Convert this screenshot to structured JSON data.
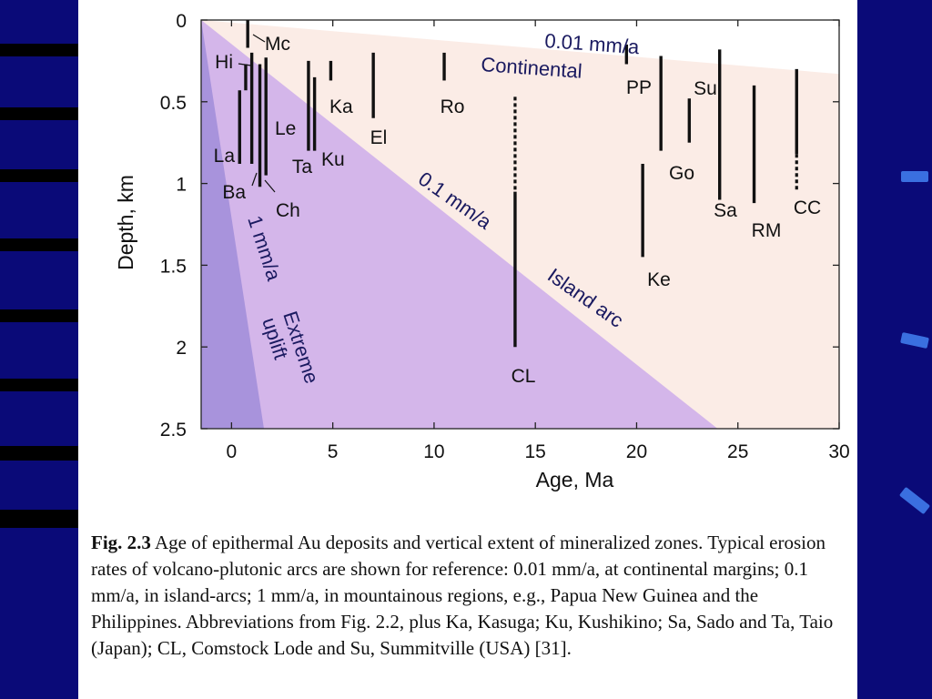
{
  "chart_data": {
    "type": "scatter",
    "xlabel": "Age, Ma",
    "ylabel": "Depth, km",
    "xlim": [
      -1.5,
      30
    ],
    "ylim": [
      0,
      2.5
    ],
    "x_ticks": [
      "0",
      "5",
      "10",
      "15",
      "20",
      "25",
      "30"
    ],
    "x_tick_values": [
      0,
      5,
      10,
      15,
      20,
      25,
      30
    ],
    "y_ticks": [
      "0",
      "0.5",
      "1",
      "1.5",
      "2",
      "2.5"
    ],
    "y_tick_values": [
      0,
      0.5,
      1,
      1.5,
      2,
      2.5
    ],
    "erosion_zones": [
      {
        "label": "0.01 mm/a",
        "sublabel": "Continental",
        "rate_mm_per_a": 0.01,
        "color": "#fbece6"
      },
      {
        "label": "0.1 mm/a",
        "sublabel": "Island arc",
        "rate_mm_per_a": 0.1,
        "color": "#d4b6ea"
      },
      {
        "label": "1 mm/a",
        "sublabel": "Extreme uplift",
        "rate_mm_per_a": 1,
        "color": "#a893dc"
      }
    ],
    "deposits": [
      {
        "name": "Mc",
        "age": 0.8,
        "depth_top": 0.0,
        "depth_bottom": 0.17
      },
      {
        "name": "Hi",
        "age": 0.7,
        "depth_top": 0.27,
        "depth_bottom": 0.43
      },
      {
        "name": "La",
        "age": 0.4,
        "depth_top": 0.43,
        "depth_bottom": 0.88
      },
      {
        "name": "Ba",
        "age": 1.0,
        "depth_top": 0.2,
        "depth_bottom": 0.88
      },
      {
        "name": "Ch",
        "age": 1.4,
        "depth_top": 0.27,
        "depth_bottom": 1.02
      },
      {
        "name": "Le",
        "age": 1.7,
        "depth_top": 0.23,
        "depth_bottom": 0.95
      },
      {
        "name": "Ta",
        "age": 3.8,
        "depth_top": 0.25,
        "depth_bottom": 0.8
      },
      {
        "name": "Ku",
        "age": 4.1,
        "depth_top": 0.35,
        "depth_bottom": 0.8
      },
      {
        "name": "Ka",
        "age": 4.9,
        "depth_top": 0.25,
        "depth_bottom": 0.37
      },
      {
        "name": "El",
        "age": 7.0,
        "depth_top": 0.2,
        "depth_bottom": 0.6
      },
      {
        "name": "Ro",
        "age": 10.5,
        "depth_top": 0.2,
        "depth_bottom": 0.37
      },
      {
        "name": "CL",
        "age": 14.0,
        "depth_top": 0.47,
        "depth_bottom": 2.0,
        "dashed_until": 1.05
      },
      {
        "name": "PP",
        "age": 19.5,
        "depth_top": 0.15,
        "depth_bottom": 0.27
      },
      {
        "name": "Ke",
        "age": 20.3,
        "depth_top": 0.88,
        "depth_bottom": 1.45
      },
      {
        "name": "Go",
        "age": 21.2,
        "depth_top": 0.22,
        "depth_bottom": 0.8
      },
      {
        "name": "Su",
        "age": 22.6,
        "depth_top": 0.48,
        "depth_bottom": 0.75
      },
      {
        "name": "Sa",
        "age": 24.1,
        "depth_top": 0.18,
        "depth_bottom": 1.1
      },
      {
        "name": "RM",
        "age": 25.8,
        "depth_top": 0.4,
        "depth_bottom": 1.12
      },
      {
        "name": "CC",
        "age": 27.9,
        "depth_top": 0.3,
        "depth_bottom": 1.05,
        "dashed_from": 0.82
      }
    ]
  },
  "caption": {
    "label": "Fig. 2.3",
    "text": " Age of epithermal Au deposits and vertical extent of mineralized zones.  Typical erosion rates of volcano-plutonic arcs are shown for reference: 0.01 mm/a, at continental margins; 0.1 mm/a, in island-arcs; 1 mm/a, in mountainous regions, e.g., Papua New Guinea and the Philippines. Abbreviations from Fig. 2.2, plus Ka, Kasuga; Ku, Kushikino; Sa, Sado and Ta, Taio (Japan); CL, Comstock Lode and Su, Summitville (USA) [31]."
  }
}
